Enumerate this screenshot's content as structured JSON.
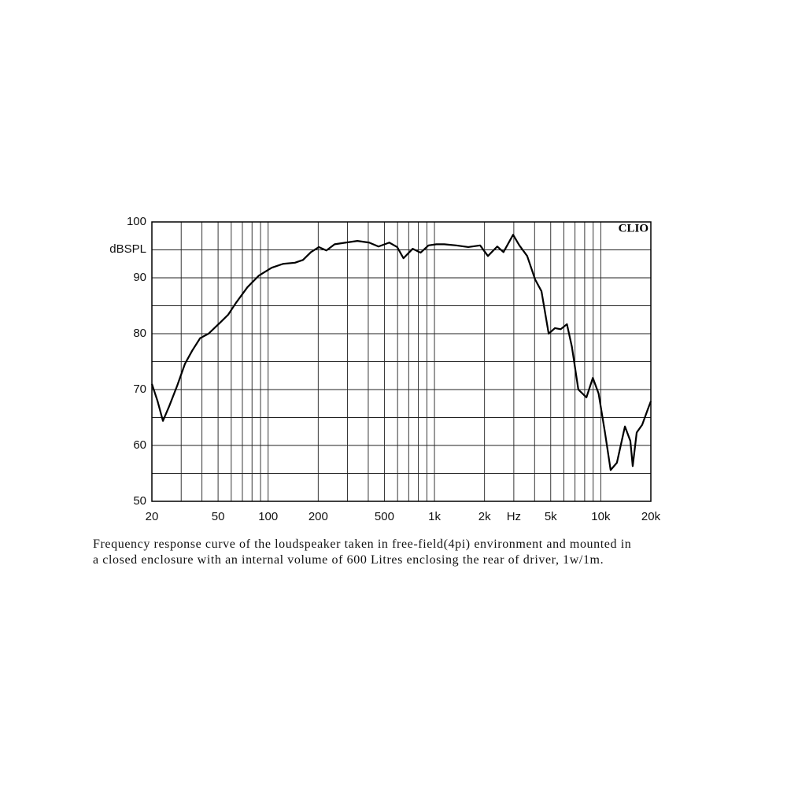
{
  "chart_data": {
    "type": "line",
    "log_x": true,
    "ylabel": "dBSPL",
    "annotation": "CLIO",
    "caption": [
      "Frequency response curve of the loudspeaker taken in free-field(4pi) environment and mounted in",
      "a closed enclosure  with an internal volume of 600 Litres enclosing the rear of driver, 1w/1m."
    ],
    "xlim": [
      20,
      20000
    ],
    "ylim": [
      50,
      100
    ],
    "xticks": [
      20,
      50,
      100,
      200,
      500,
      {
        "value": 1000,
        "label": "1k"
      },
      {
        "value": 2000,
        "label": "2k"
      },
      {
        "value": 3000,
        "label": "Hz"
      },
      {
        "value": 5000,
        "label": "5k"
      },
      {
        "value": 10000,
        "label": "10k"
      },
      {
        "value": 20000,
        "label": "20k"
      }
    ],
    "yticks": [
      50,
      60,
      70,
      80,
      90,
      100
    ],
    "xgrid": [
      20,
      30,
      40,
      50,
      60,
      70,
      80,
      90,
      100,
      200,
      300,
      400,
      500,
      600,
      700,
      800,
      900,
      1000,
      2000,
      3000,
      4000,
      5000,
      6000,
      7000,
      8000,
      9000,
      10000,
      20000
    ],
    "ygrid": [
      50,
      55,
      60,
      65,
      70,
      75,
      80,
      85,
      90,
      95,
      100
    ],
    "grid": true,
    "color": "#000000",
    "x": [
      20,
      21.6,
      23.3,
      25.4,
      28.4,
      31.6,
      35,
      39,
      43.8,
      51.5,
      57.5,
      64,
      75,
      88,
      105,
      123,
      145,
      162,
      181,
      202,
      224,
      251,
      293,
      344,
      405,
      461,
      535,
      597,
      651,
      740,
      825,
      921,
      1026,
      1145,
      1350,
      1597,
      1882,
      2096,
      2384,
      2600,
      2970,
      3240,
      3610,
      4030,
      4400,
      4860,
      5300,
      5740,
      6260,
      6700,
      7330,
      8200,
      8960,
      9700,
      10600,
      11460,
      12500,
      13970,
      15060,
      15560,
      16440,
      17740,
      19190,
      20000
    ],
    "values": [
      71,
      68,
      64.4,
      67,
      70.7,
      74.6,
      77,
      79.2,
      80,
      82,
      83.4,
      85.5,
      88.3,
      90.4,
      91.8,
      92.5,
      92.7,
      93.2,
      94.6,
      95.5,
      94.9,
      96,
      96.3,
      96.6,
      96.3,
      95.6,
      96.3,
      95.5,
      93.5,
      95.2,
      94.5,
      95.8,
      96,
      96,
      95.8,
      95.5,
      95.8,
      93.9,
      95.6,
      94.6,
      97.7,
      95.8,
      93.9,
      89.7,
      87.6,
      80,
      81,
      80.8,
      81.7,
      77.7,
      70,
      68.6,
      72.1,
      69.3,
      62.3,
      55.6,
      56.9,
      63.4,
      60.8,
      56.3,
      62.3,
      63.7,
      66.5,
      67.9
    ]
  }
}
